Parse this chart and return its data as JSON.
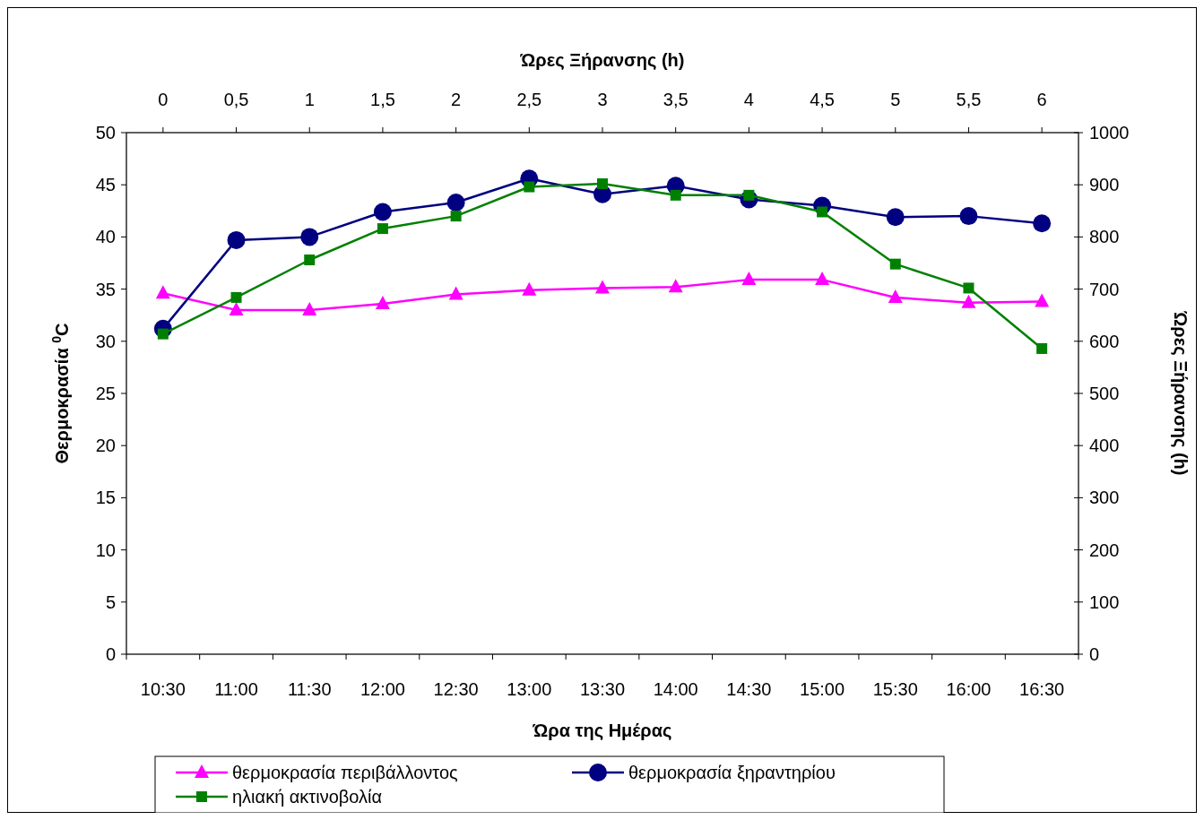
{
  "chart_data": {
    "type": "line",
    "xlabel": "Ώρα της Ημέρας",
    "ylabel": "Θερμοκρασία $^{0}$C",
    "y2label": "Ώρες Ξήρανσης (h)",
    "x2label": "Ώρες Ξήρανσης (h)",
    "categories": [
      "10:30",
      "11:00",
      "11:30",
      "12:00",
      "12:30",
      "13:00",
      "13:30",
      "14:00",
      "14:30",
      "15:00",
      "15:30",
      "16:00",
      "16:30"
    ],
    "ylim": [
      0,
      50
    ],
    "yticks": [
      0,
      5,
      10,
      15,
      20,
      25,
      30,
      35,
      40,
      45,
      50
    ],
    "y2lim": [
      0,
      1000
    ],
    "y2ticks": [
      0,
      100,
      200,
      300,
      400,
      500,
      600,
      700,
      800,
      900,
      1000
    ],
    "x2lim": [
      -0.25,
      6.25
    ],
    "x2ticks": [
      0,
      {
        "value": 0.5,
        "label": "0,5"
      },
      1,
      {
        "value": 1.5,
        "label": "1,5"
      },
      2,
      {
        "value": 2.5,
        "label": "2,5"
      },
      3,
      {
        "value": 3.5,
        "label": "3,5"
      },
      4,
      {
        "value": 4.5,
        "label": "4,5"
      },
      5,
      {
        "value": 5.5,
        "label": "5,5"
      },
      6
    ],
    "grid": false,
    "legend": "bottom",
    "series": [
      {
        "name": "θερμοκρασία περιβάλλοντος",
        "color": "#ff00ff",
        "marker": "triangle",
        "values": [
          34.6,
          33.0,
          33.0,
          33.6,
          34.5,
          34.9,
          35.1,
          35.2,
          35.9,
          35.9,
          34.2,
          33.7,
          33.8
        ]
      },
      {
        "name": "θερμοκρασία ξηραντηρίου",
        "color": "#000080",
        "marker": "circle",
        "values": [
          31.2,
          39.7,
          40.0,
          42.4,
          43.3,
          45.6,
          44.1,
          44.9,
          43.6,
          43.0,
          41.9,
          42.0,
          41.3
        ]
      },
      {
        "name": "ηλιακή ακτινοβολία",
        "color": "#008000",
        "marker": "square",
        "axis": "y2",
        "values": [
          614,
          684,
          756,
          816,
          840,
          896,
          902,
          880,
          880,
          848,
          748,
          702,
          586
        ]
      }
    ]
  }
}
